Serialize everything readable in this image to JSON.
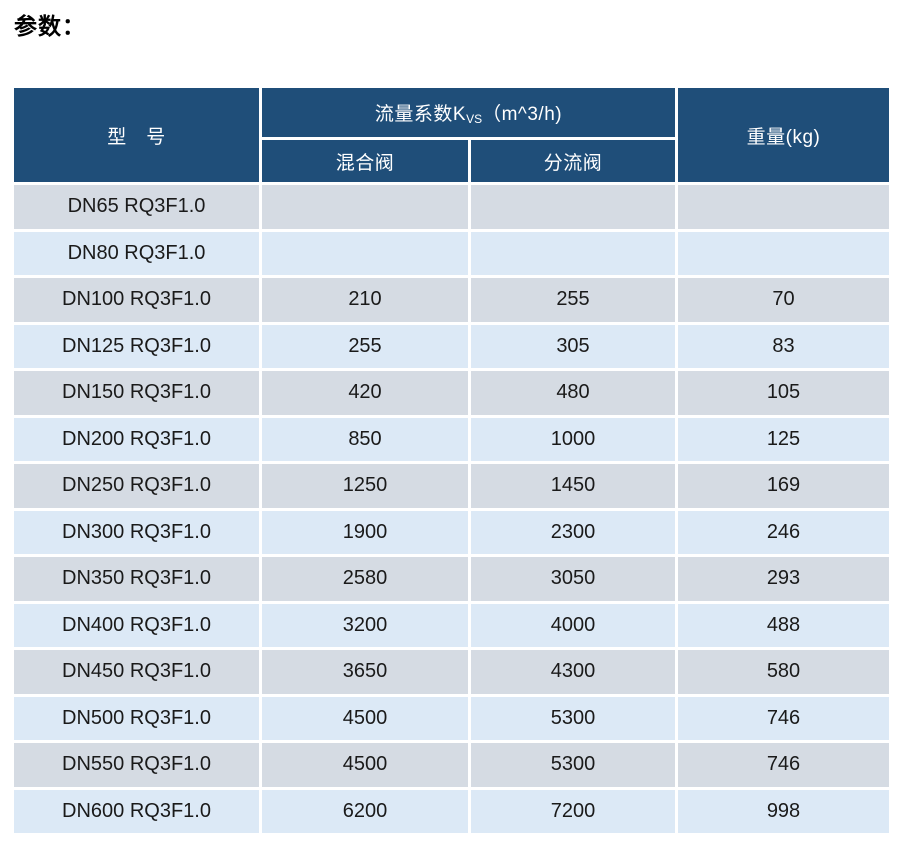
{
  "page": {
    "title": "参数："
  },
  "table": {
    "header": {
      "model": "型　号",
      "kvs_prefix": "流量系数K",
      "kvs_sub": "VS",
      "kvs_suffix": "（m^3/h)",
      "mixing": "混合阀",
      "diverting": "分流阀",
      "weight": "重量(kg)"
    },
    "rows": [
      {
        "model": "DN65 RQ3F1.0",
        "mixing": "",
        "diverting": "",
        "weight": ""
      },
      {
        "model": "DN80 RQ3F1.0",
        "mixing": "",
        "diverting": "",
        "weight": ""
      },
      {
        "model": "DN100 RQ3F1.0",
        "mixing": "210",
        "diverting": "255",
        "weight": "70"
      },
      {
        "model": "DN125 RQ3F1.0",
        "mixing": "255",
        "diverting": "305",
        "weight": "83"
      },
      {
        "model": "DN150 RQ3F1.0",
        "mixing": "420",
        "diverting": "480",
        "weight": "105"
      },
      {
        "model": "DN200 RQ3F1.0",
        "mixing": "850",
        "diverting": "1000",
        "weight": "125"
      },
      {
        "model": "DN250 RQ3F1.0",
        "mixing": "1250",
        "diverting": "1450",
        "weight": "169"
      },
      {
        "model": "DN300 RQ3F1.0",
        "mixing": "1900",
        "diverting": "2300",
        "weight": "246"
      },
      {
        "model": "DN350 RQ3F1.0",
        "mixing": "2580",
        "diverting": "3050",
        "weight": "293"
      },
      {
        "model": "DN400 RQ3F1.0",
        "mixing": "3200",
        "diverting": "4000",
        "weight": "488"
      },
      {
        "model": "DN450 RQ3F1.0",
        "mixing": "3650",
        "diverting": "4300",
        "weight": "580"
      },
      {
        "model": "DN500 RQ3F1.0",
        "mixing": "4500",
        "diverting": "5300",
        "weight": "746"
      },
      {
        "model": "DN550 RQ3F1.0",
        "mixing": "4500",
        "diverting": "5300",
        "weight": "746"
      },
      {
        "model": "DN600 RQ3F1.0",
        "mixing": "6200",
        "diverting": "7200",
        "weight": "998"
      }
    ]
  },
  "colors": {
    "header_bg": "#1F4E79",
    "header_text": "#FFFFFF",
    "row_gray": "#D5DBE3",
    "row_blue": "#DCE9F6",
    "grid": "#FFFFFF",
    "cell_text": "#1A1A1A",
    "title_text": "#000000"
  }
}
